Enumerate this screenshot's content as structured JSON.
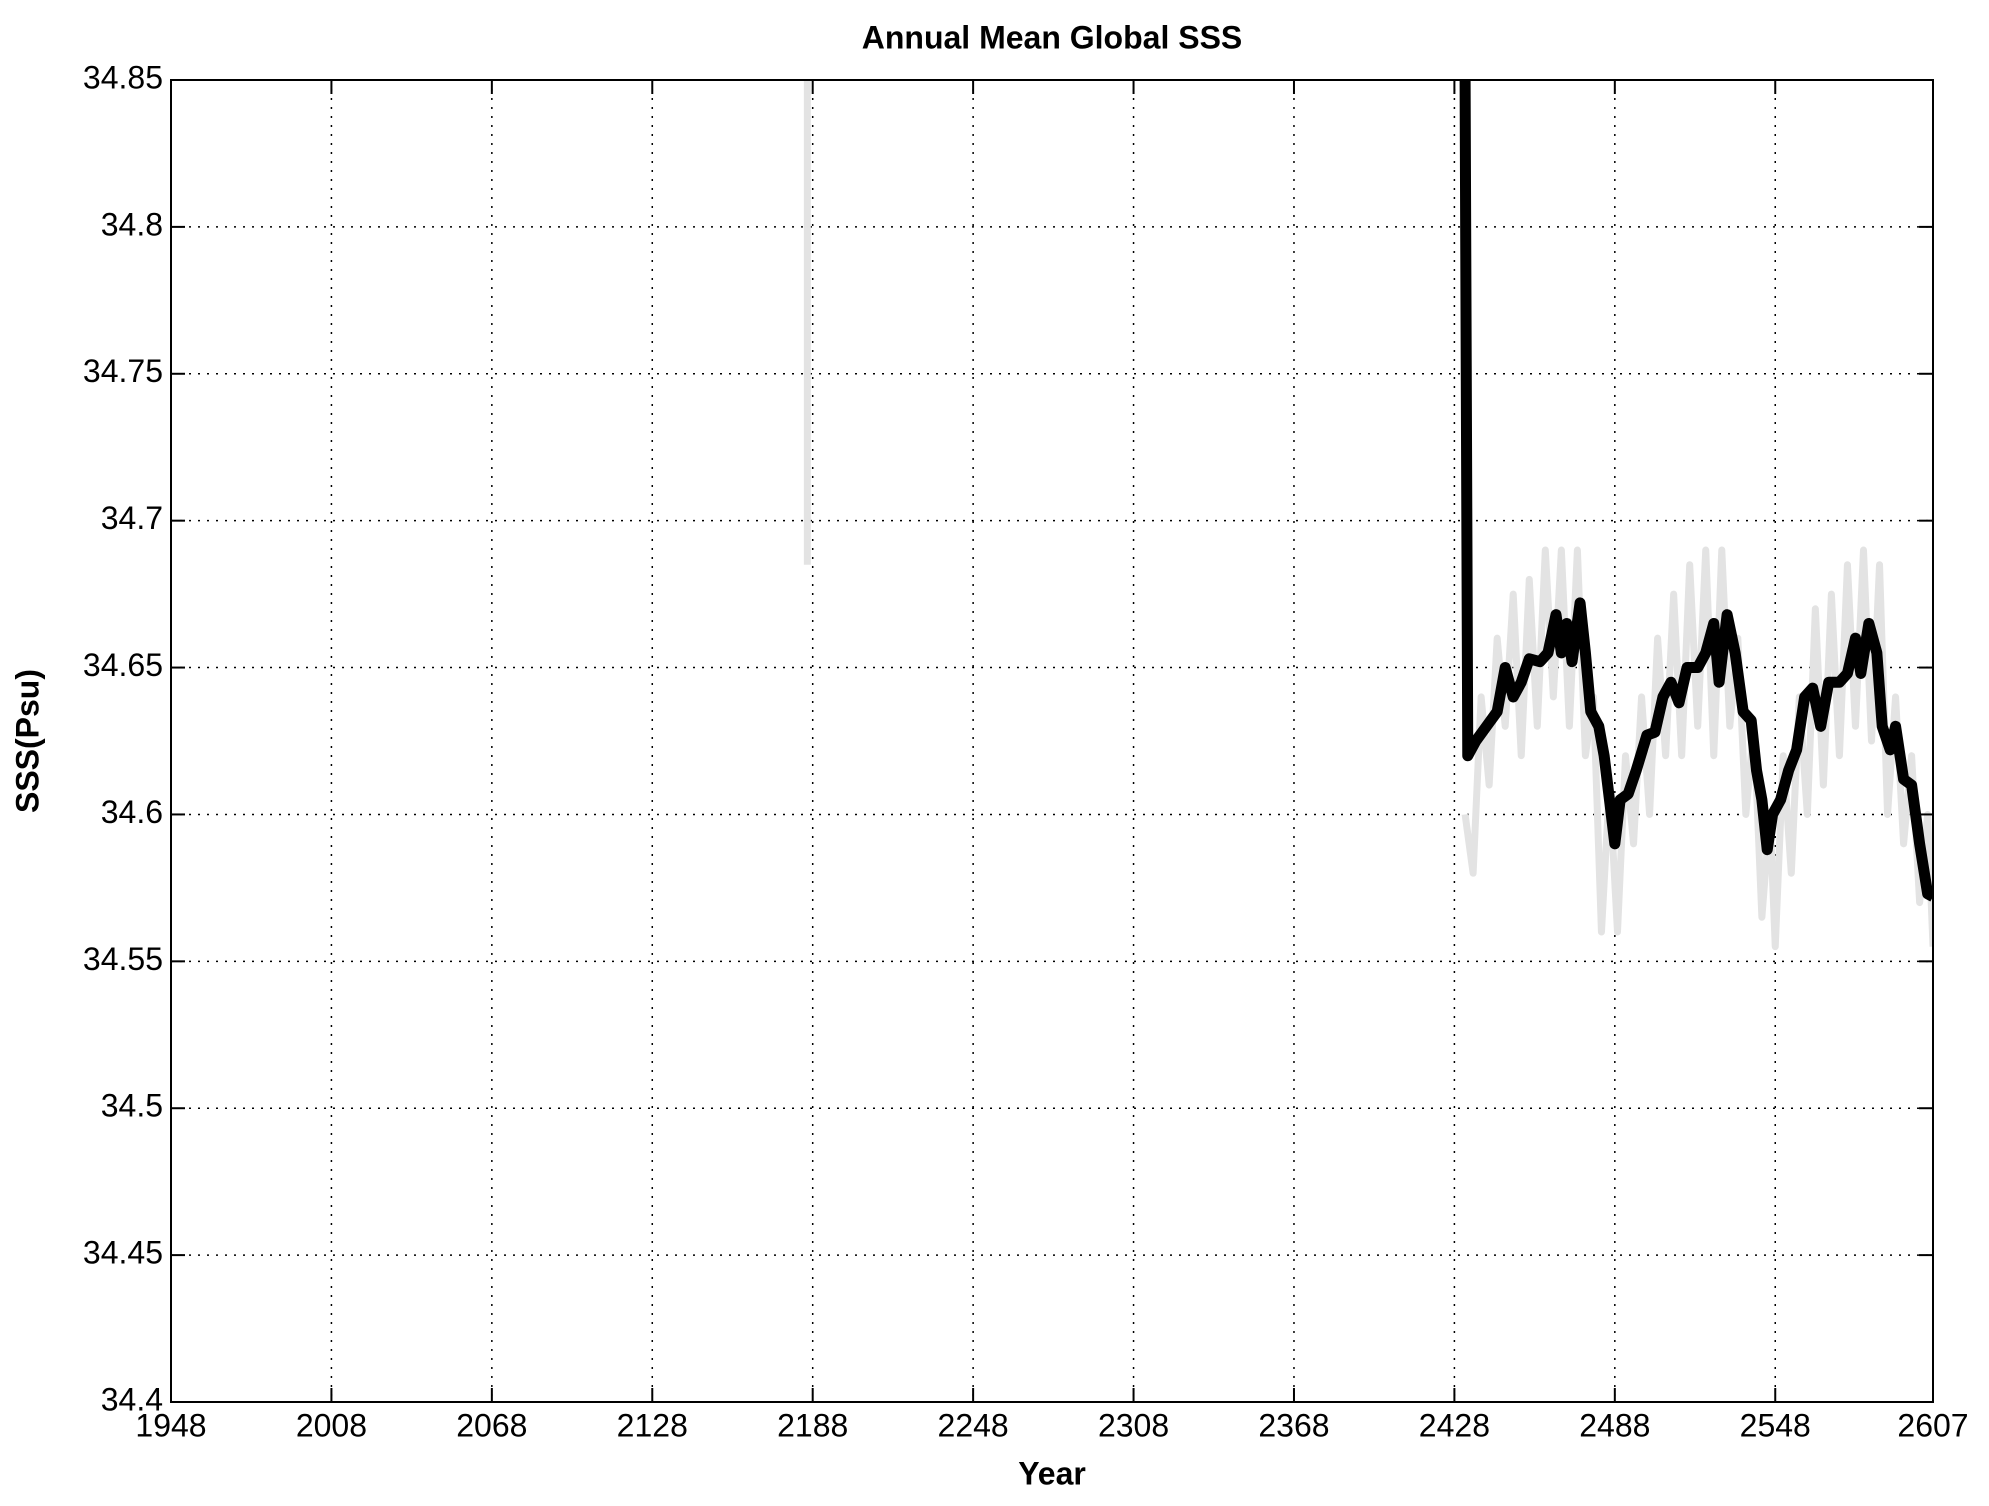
{
  "chart_data": {
    "type": "line",
    "title": "Annual Mean Global SSS",
    "x_label": "Year",
    "y_label": "SSS(Psu)",
    "xlim": [
      1948,
      2607
    ],
    "xticks": [
      1948,
      2008,
      2068,
      2128,
      2188,
      2248,
      2308,
      2368,
      2428,
      2488,
      2548,
      2607
    ],
    "ylim": [
      34.4,
      34.85
    ],
    "yticks": [
      34.4,
      34.45,
      34.5,
      34.55,
      34.6,
      34.65,
      34.7,
      34.75,
      34.8,
      34.85
    ],
    "grid": true,
    "series": [
      {
        "color": "#e3e3e3",
        "width": 7,
        "x": [
          2186,
          2186,
          2188,
          2432,
          2435,
          2438,
          2441,
          2444,
          2447,
          2450,
          2453,
          2456,
          2459,
          2462,
          2465,
          2468,
          2471,
          2474,
          2477,
          2480,
          2483,
          2486,
          2489,
          2492,
          2495,
          2498,
          2501,
          2504,
          2507,
          2510,
          2513,
          2516,
          2519,
          2522,
          2525,
          2528,
          2531,
          2534,
          2537,
          2540,
          2543,
          2546,
          2548,
          2551,
          2554,
          2557,
          2560,
          2563,
          2566,
          2569,
          2572,
          2575,
          2578,
          2581,
          2584,
          2587,
          2590,
          2593,
          2596,
          2599,
          2602,
          2605,
          2607
        ],
        "values": [
          34.685,
          34.85,
          null,
          34.6,
          34.58,
          34.64,
          34.61,
          34.66,
          34.63,
          34.675,
          34.62,
          34.68,
          34.63,
          34.69,
          34.64,
          34.69,
          34.63,
          34.69,
          34.62,
          34.64,
          34.56,
          34.61,
          34.56,
          34.62,
          34.59,
          34.64,
          34.6,
          34.66,
          34.62,
          34.675,
          34.62,
          34.685,
          34.63,
          34.69,
          34.62,
          34.69,
          34.63,
          34.66,
          34.6,
          34.63,
          34.565,
          34.6,
          34.555,
          34.62,
          34.58,
          34.64,
          34.6,
          34.67,
          34.61,
          34.675,
          34.62,
          34.685,
          34.63,
          34.69,
          34.625,
          34.685,
          34.6,
          34.64,
          34.59,
          34.62,
          34.57,
          34.6,
          34.555
        ]
      },
      {
        "color": "#000000",
        "width": 11,
        "x": [
          2432,
          2433,
          2436,
          2440,
          2444,
          2447,
          2450,
          2453,
          2456,
          2460,
          2463,
          2466,
          2468,
          2470,
          2472,
          2475,
          2477,
          2479,
          2482,
          2484,
          2486,
          2488,
          2490,
          2493,
          2496,
          2500,
          2503,
          2506,
          2509,
          2512,
          2515,
          2519,
          2522,
          2525,
          2527,
          2530,
          2533,
          2536,
          2539,
          2541,
          2543,
          2545,
          2547,
          2550,
          2553,
          2556,
          2559,
          2562,
          2565,
          2568,
          2572,
          2575,
          2578,
          2580,
          2583,
          2586,
          2588,
          2591,
          2593,
          2596,
          2599,
          2602,
          2605,
          2607
        ],
        "values": [
          34.85,
          34.62,
          34.625,
          34.63,
          34.635,
          34.65,
          34.64,
          34.645,
          34.653,
          34.652,
          34.655,
          34.668,
          34.655,
          34.665,
          34.652,
          34.672,
          34.655,
          34.635,
          34.63,
          34.62,
          34.605,
          34.59,
          34.605,
          34.607,
          34.615,
          34.627,
          34.628,
          34.64,
          34.645,
          34.638,
          34.65,
          34.65,
          34.655,
          34.665,
          34.645,
          34.668,
          34.655,
          34.635,
          34.632,
          34.615,
          34.605,
          34.588,
          34.6,
          34.605,
          34.615,
          34.622,
          34.64,
          34.643,
          34.63,
          34.645,
          34.645,
          34.648,
          34.66,
          34.648,
          34.665,
          34.655,
          34.63,
          34.622,
          34.63,
          34.612,
          34.61,
          34.59,
          34.573,
          34.572
        ]
      }
    ]
  }
}
